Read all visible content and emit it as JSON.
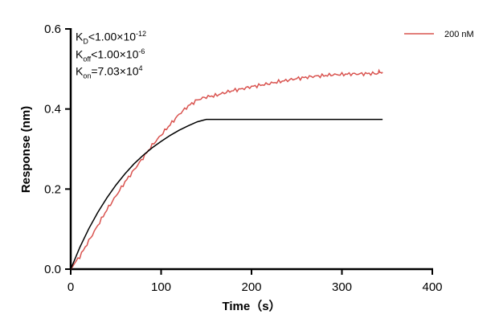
{
  "chart_data": {
    "type": "line",
    "xlabel": "Time（s）",
    "ylabel": "Response (nm)",
    "xlim": [
      0,
      400
    ],
    "ylim": [
      0,
      0.6
    ],
    "xticks": [
      "0",
      "100",
      "200",
      "300",
      "400"
    ],
    "yticks": [
      "0.0",
      "0.2",
      "0.4",
      "0.6"
    ],
    "grid": false,
    "legend_position": "top-right",
    "annotations": {
      "kd": {
        "sym": "K",
        "sub": "D",
        "rel": "<1.00×10",
        "exp": "-12"
      },
      "koff": {
        "sym": "K",
        "sub": "off",
        "rel": "<1.00×10",
        "exp": "-6"
      },
      "kon": {
        "sym": "K",
        "sub": "on",
        "rel": "=7.03×10",
        "exp": "4"
      }
    },
    "series": [
      {
        "name": "200 nM",
        "color": "#d9534f",
        "x": [
          0,
          10,
          20,
          30,
          40,
          50,
          60,
          70,
          80,
          90,
          100,
          110,
          120,
          130,
          140,
          150,
          160,
          170,
          180,
          190,
          200,
          210,
          220,
          230,
          240,
          250,
          260,
          270,
          280,
          290,
          300,
          310,
          320,
          330,
          340,
          345
        ],
        "y": [
          0,
          0.03,
          0.07,
          0.11,
          0.15,
          0.185,
          0.22,
          0.25,
          0.28,
          0.31,
          0.335,
          0.36,
          0.385,
          0.405,
          0.42,
          0.428,
          0.432,
          0.44,
          0.447,
          0.452,
          0.458,
          0.462,
          0.466,
          0.47,
          0.473,
          0.476,
          0.478,
          0.48,
          0.481,
          0.483,
          0.484,
          0.486,
          0.487,
          0.489,
          0.49,
          0.492
        ]
      },
      {
        "color": "#000000",
        "x": [
          0,
          10,
          20,
          30,
          40,
          50,
          60,
          70,
          80,
          90,
          100,
          110,
          120,
          130,
          140,
          150,
          345
        ],
        "y": [
          0,
          0.054,
          0.101,
          0.142,
          0.178,
          0.21,
          0.238,
          0.263,
          0.284,
          0.303,
          0.319,
          0.334,
          0.347,
          0.358,
          0.368,
          0.374,
          0.374
        ]
      }
    ]
  }
}
